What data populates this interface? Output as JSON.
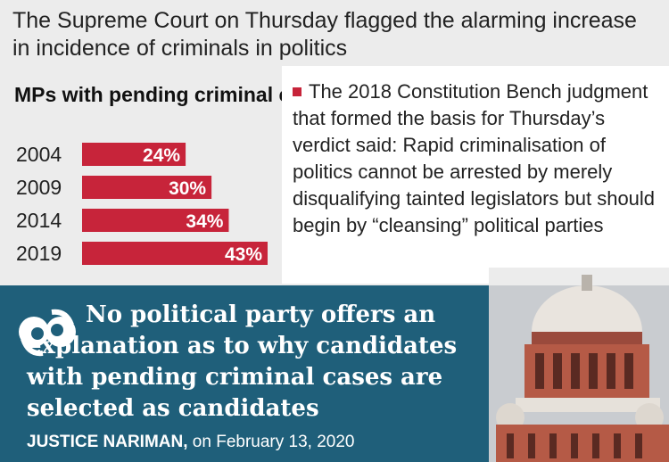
{
  "headline": "The Supreme Court on Thursday flagged the alarming increase in incidence of criminals in politics",
  "chart_data": {
    "type": "bar",
    "title": "MPs with pending criminal cases:",
    "categories": [
      "2004",
      "2009",
      "2014",
      "2019"
    ],
    "values": [
      24,
      30,
      34,
      43
    ],
    "value_labels": [
      "24%",
      "30%",
      "34%",
      "43%"
    ],
    "orientation": "horizontal",
    "bar_color": "#c7243a"
  },
  "sidebar_quote": "The 2018 Constitution Bench judgment that formed the basis for Thursday’s verdict said: Rapid criminalisation of politics cannot be arrested by merely disqualifying tainted legislators but should begin by “cleansing” political parties",
  "pull_quote": "No political party offers an explanation as to why candidates with pending criminal cases are selected as candidates",
  "attribution": {
    "name": "JUSTICE NARIMAN,",
    "date": "on February 13, 2020"
  },
  "colors": {
    "accent": "#c7243a",
    "band": "#1f5f7a",
    "background": "#ececec"
  }
}
